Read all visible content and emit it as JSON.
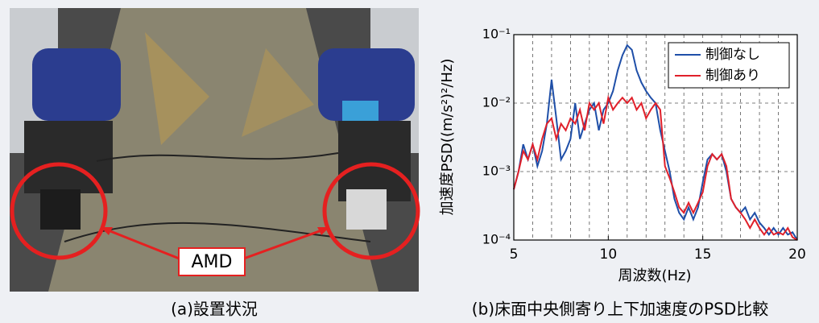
{
  "photo": {
    "label": "AMD",
    "caption": "(a)設置状況"
  },
  "chart_data": {
    "type": "line",
    "caption": "(b)床面中央側寄り上下加速度のPSD比較",
    "xlabel": "周波数(Hz)",
    "ylabel": "加速度PSD((m/s²)²/Hz)",
    "xlim": [
      5,
      20
    ],
    "xticks": [
      5,
      10,
      15,
      20
    ],
    "xgrid_step": 1,
    "ylim": [
      0.0001,
      0.1
    ],
    "log_y": true,
    "grid": true,
    "legend": "upper right",
    "yticks": [
      {
        "value": 0.0001,
        "label": "10⁻⁴"
      },
      {
        "value": 0.001,
        "label": "10⁻³"
      },
      {
        "value": 0.01,
        "label": "10⁻²"
      },
      {
        "value": 0.1,
        "label": "10⁻¹"
      }
    ],
    "x": [
      5,
      5.25,
      5.5,
      5.75,
      6,
      6.25,
      6.5,
      6.75,
      7,
      7.25,
      7.5,
      7.75,
      8,
      8.25,
      8.5,
      8.75,
      9,
      9.25,
      9.5,
      9.75,
      10,
      10.25,
      10.5,
      10.75,
      11,
      11.25,
      11.5,
      11.75,
      12,
      12.25,
      12.5,
      12.75,
      13,
      13.25,
      13.5,
      13.75,
      14,
      14.25,
      14.5,
      14.75,
      15,
      15.25,
      15.5,
      15.75,
      16,
      16.25,
      16.5,
      16.75,
      17,
      17.25,
      17.5,
      17.75,
      18,
      18.25,
      18.5,
      18.75,
      19,
      19.25,
      19.5,
      19.75,
      20
    ],
    "series": [
      {
        "name": "制御なし",
        "color": "#1f4fa8",
        "values": [
          0.00055,
          0.001,
          0.0025,
          0.0015,
          0.0025,
          0.0012,
          0.002,
          0.005,
          0.022,
          0.006,
          0.0015,
          0.002,
          0.003,
          0.01,
          0.003,
          0.005,
          0.008,
          0.01,
          0.004,
          0.008,
          0.01,
          0.015,
          0.03,
          0.05,
          0.07,
          0.06,
          0.03,
          0.02,
          0.015,
          0.012,
          0.01,
          0.004,
          0.002,
          0.001,
          0.0004,
          0.00025,
          0.0002,
          0.0003,
          0.0002,
          0.0003,
          0.0007,
          0.0015,
          0.0018,
          0.0015,
          0.0018,
          0.001,
          0.0004,
          0.0003,
          0.00025,
          0.0003,
          0.0002,
          0.00025,
          0.00018,
          0.00015,
          0.00012,
          0.00015,
          0.00012,
          0.00015,
          0.00012,
          0.00013,
          0.0001
        ]
      },
      {
        "name": "制御あり",
        "color": "#e0202a",
        "values": [
          0.00055,
          0.001,
          0.002,
          0.0015,
          0.0025,
          0.0015,
          0.003,
          0.005,
          0.006,
          0.003,
          0.005,
          0.004,
          0.006,
          0.005,
          0.008,
          0.004,
          0.01,
          0.008,
          0.01,
          0.005,
          0.012,
          0.008,
          0.01,
          0.012,
          0.01,
          0.012,
          0.008,
          0.01,
          0.006,
          0.008,
          0.01,
          0.008,
          0.0012,
          0.0008,
          0.0005,
          0.0003,
          0.00025,
          0.00035,
          0.00025,
          0.00035,
          0.0005,
          0.0012,
          0.0018,
          0.0015,
          0.0018,
          0.0012,
          0.0004,
          0.0003,
          0.00025,
          0.0002,
          0.00015,
          0.0002,
          0.00015,
          0.00012,
          0.00015,
          0.00012,
          0.00013,
          0.00012,
          0.00015,
          0.00011,
          0.0001
        ]
      }
    ]
  }
}
